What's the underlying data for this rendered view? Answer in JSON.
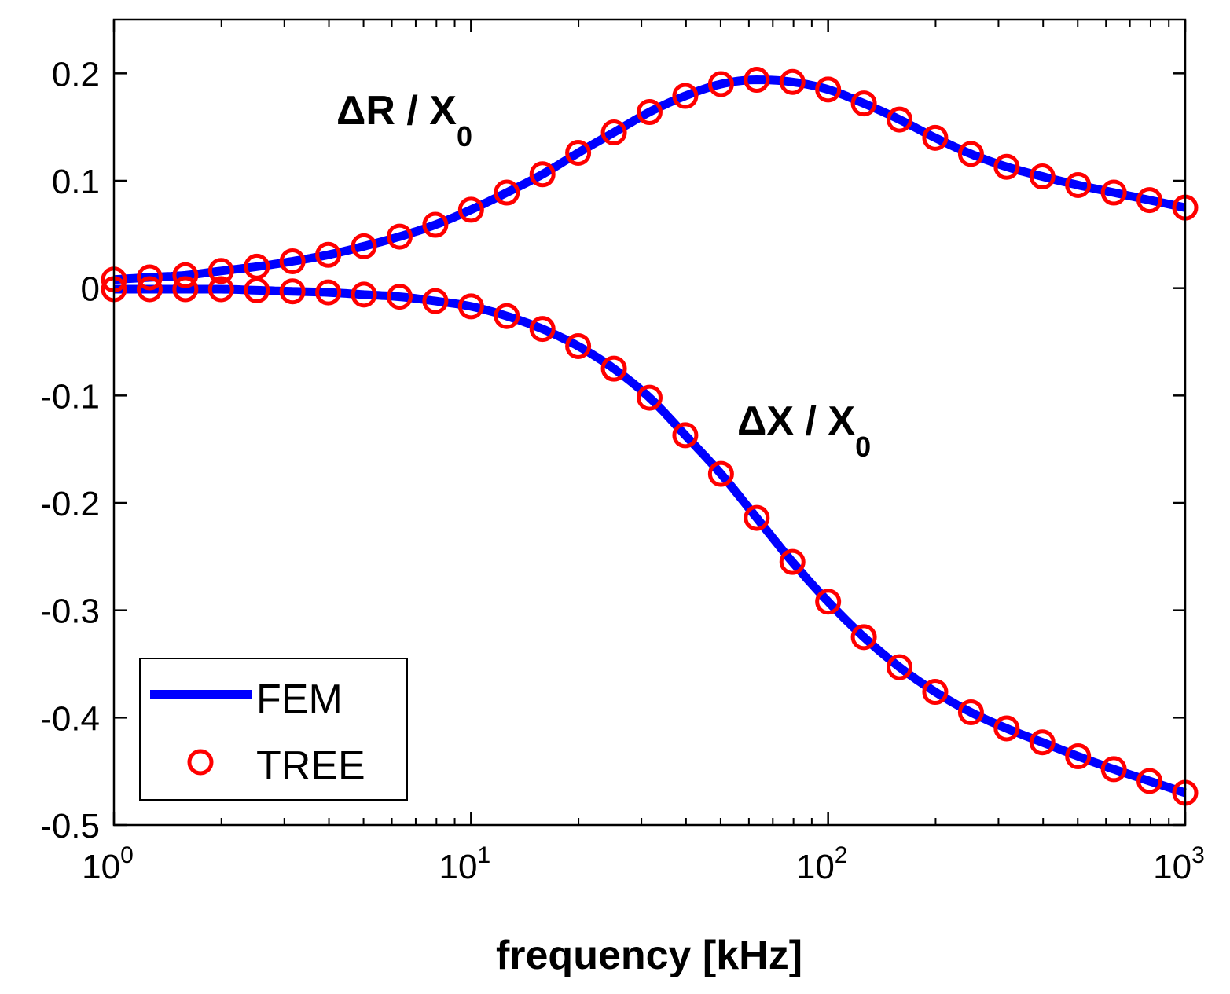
{
  "chart_data": {
    "type": "line",
    "xscale": "log",
    "xlim": [
      1,
      1000
    ],
    "ylim": [
      -0.5,
      0.25
    ],
    "xlabel": "frequency [kHz]",
    "ylabel": "",
    "x_ticks": [
      {
        "base": "10",
        "exp": "0",
        "value": 1
      },
      {
        "base": "10",
        "exp": "1",
        "value": 10
      },
      {
        "base": "10",
        "exp": "2",
        "value": 100
      },
      {
        "base": "10",
        "exp": "3",
        "value": 1000
      }
    ],
    "y_ticks": [
      {
        "label": "0.2",
        "value": 0.2
      },
      {
        "label": "0.1",
        "value": 0.1
      },
      {
        "label": "0",
        "value": 0
      },
      {
        "label": "-0.1",
        "value": -0.1
      },
      {
        "label": "-0.2",
        "value": -0.2
      },
      {
        "label": "-0.3",
        "value": -0.3
      },
      {
        "label": "-0.4",
        "value": -0.4
      },
      {
        "label": "-0.5",
        "value": -0.5
      }
    ],
    "x": [
      1,
      1.259,
      1.585,
      1.995,
      2.512,
      3.162,
      3.981,
      5.012,
      6.31,
      7.943,
      10,
      12.59,
      15.85,
      19.95,
      25.12,
      31.62,
      39.81,
      50.12,
      63.1,
      79.43,
      100,
      125.9,
      158.5,
      199.5,
      251.2,
      316.2,
      398.1,
      501.2,
      631,
      794.3,
      1000
    ],
    "series": [
      {
        "name": "ΔR / X0",
        "label_main": "ΔR / X",
        "label_sub": "0",
        "values": [
          0.008,
          0.01,
          0.012,
          0.016,
          0.02,
          0.025,
          0.031,
          0.039,
          0.048,
          0.059,
          0.073,
          0.089,
          0.106,
          0.126,
          0.145,
          0.164,
          0.179,
          0.19,
          0.194,
          0.192,
          0.185,
          0.172,
          0.157,
          0.14,
          0.125,
          0.113,
          0.104,
          0.096,
          0.089,
          0.082,
          0.075
        ]
      },
      {
        "name": "ΔX / X0",
        "label_main": "ΔX / X",
        "label_sub": "0",
        "values": [
          -0.001,
          -0.001,
          -0.001,
          -0.001,
          -0.002,
          -0.003,
          -0.004,
          -0.006,
          -0.008,
          -0.012,
          -0.017,
          -0.026,
          -0.038,
          -0.054,
          -0.075,
          -0.102,
          -0.137,
          -0.173,
          -0.214,
          -0.255,
          -0.292,
          -0.325,
          -0.353,
          -0.376,
          -0.395,
          -0.41,
          -0.423,
          -0.436,
          -0.448,
          -0.459,
          -0.47
        ]
      }
    ],
    "legend": {
      "position": "bottom-left",
      "entries": [
        {
          "label": "FEM",
          "style": "line",
          "color": "#0000FF"
        },
        {
          "label": "TREE",
          "style": "marker",
          "color": "#FF0000"
        }
      ]
    },
    "colors": {
      "fem": "#0000FF",
      "tree": "#FF0000",
      "axis": "#000000"
    }
  }
}
